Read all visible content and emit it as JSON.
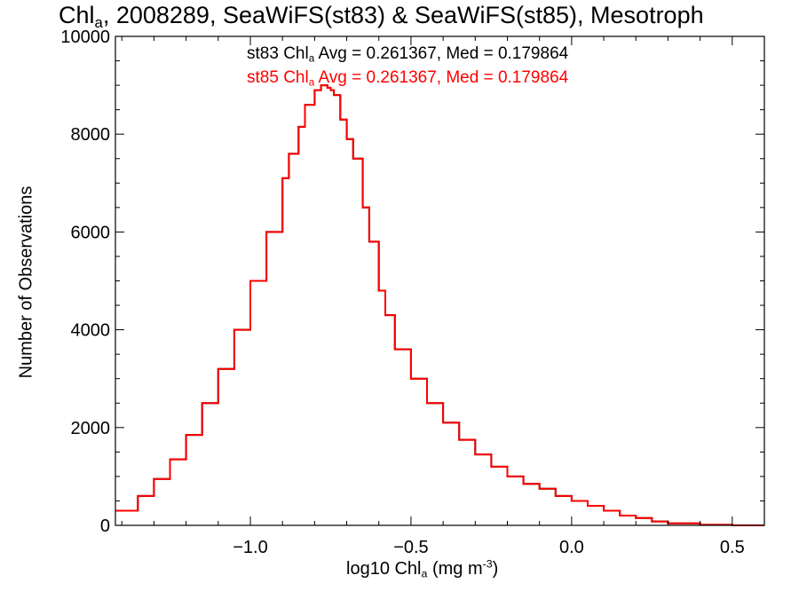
{
  "chart_data": {
    "type": "line",
    "step": true,
    "title": {
      "main": "Chl",
      "sub": "a",
      "rest": ", 2008289, SeaWiFS(st83) & SeaWiFS(st85), Mesotroph"
    },
    "xlabel": {
      "main": "log10 Chl",
      "sub": "a",
      "rest": " (mg m",
      "sup": "-3",
      "end": ")"
    },
    "ylabel": "Number of Observations",
    "xlim": [
      -1.42,
      0.6
    ],
    "ylim": [
      0,
      10000
    ],
    "x_ticks": [
      -1.0,
      -0.5,
      0.0,
      0.5
    ],
    "x_tick_labels": [
      "−1.0",
      "−0.5",
      "0.0",
      "0.5"
    ],
    "y_ticks": [
      0,
      2000,
      4000,
      6000,
      8000,
      10000
    ],
    "y_tick_labels": [
      "0",
      "2000",
      "4000",
      "6000",
      "8000",
      "10000"
    ],
    "annotations": [
      {
        "a": "st83 Chl",
        "b": "a",
        "c": " Avg = 0.261367, Med = 0.179864",
        "color": "#000000"
      },
      {
        "a": "st85 Chl",
        "b": "a",
        "c": " Avg = 0.261367, Med = 0.179864",
        "color": "#ff0000"
      }
    ],
    "series": [
      {
        "color": "#000000",
        "ref": "x"
      },
      {
        "color": "#ff0000",
        "ref": "x"
      }
    ],
    "x": [
      -1.42,
      -1.35,
      -1.3,
      -1.25,
      -1.2,
      -1.15,
      -1.1,
      -1.05,
      -1.0,
      -0.95,
      -0.9,
      -0.88,
      -0.85,
      -0.83,
      -0.8,
      -0.78,
      -0.76,
      -0.75,
      -0.74,
      -0.72,
      -0.7,
      -0.68,
      -0.65,
      -0.63,
      -0.6,
      -0.58,
      -0.55,
      -0.5,
      -0.45,
      -0.4,
      -0.35,
      -0.3,
      -0.25,
      -0.2,
      -0.15,
      -0.1,
      -0.05,
      0.0,
      0.05,
      0.1,
      0.15,
      0.2,
      0.25,
      0.3,
      0.4,
      0.5,
      0.6
    ],
    "y": [
      300,
      600,
      950,
      1350,
      1850,
      2500,
      3200,
      4000,
      5000,
      6000,
      7100,
      7600,
      8150,
      8600,
      8900,
      9000,
      8950,
      8900,
      8800,
      8300,
      7900,
      7500,
      6500,
      5800,
      4800,
      4300,
      3600,
      3000,
      2500,
      2100,
      1750,
      1450,
      1200,
      1000,
      850,
      750,
      600,
      500,
      400,
      300,
      200,
      150,
      80,
      40,
      10,
      0,
      0
    ]
  }
}
